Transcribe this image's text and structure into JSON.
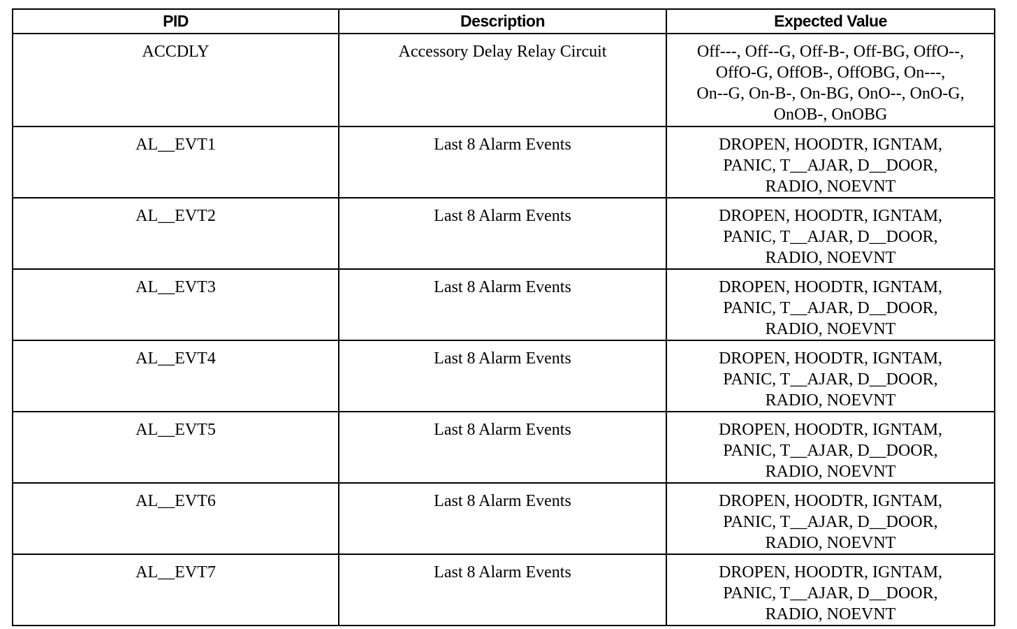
{
  "table": {
    "headers": [
      "PID",
      "Description",
      "Expected Value"
    ],
    "rows": [
      {
        "pid": "ACCDLY",
        "description": "Accessory Delay Relay Circuit",
        "expected": "Off---, Off--G, Off-B-, Off-BG, OffO--,\nOffO-G, OffOB-, OffOBG, On---,\nOn--G, On-B-, On-BG, OnO--, OnO-G,\nOnOB-, OnOBG"
      },
      {
        "pid": "AL__EVT1",
        "description": "Last 8 Alarm Events",
        "expected": "DROPEN, HOODTR, IGNTAM,\nPANIC, T__AJAR, D__DOOR,\nRADIO, NOEVNT"
      },
      {
        "pid": "AL__EVT2",
        "description": "Last 8 Alarm Events",
        "expected": "DROPEN, HOODTR, IGNTAM,\nPANIC, T__AJAR, D__DOOR,\nRADIO, NOEVNT"
      },
      {
        "pid": "AL__EVT3",
        "description": "Last 8 Alarm Events",
        "expected": "DROPEN, HOODTR, IGNTAM,\nPANIC, T__AJAR, D__DOOR,\nRADIO, NOEVNT"
      },
      {
        "pid": "AL__EVT4",
        "description": "Last 8 Alarm Events",
        "expected": "DROPEN, HOODTR, IGNTAM,\nPANIC, T__AJAR, D__DOOR,\nRADIO, NOEVNT"
      },
      {
        "pid": "AL__EVT5",
        "description": "Last 8 Alarm Events",
        "expected": "DROPEN, HOODTR, IGNTAM,\nPANIC, T__AJAR, D__DOOR,\nRADIO, NOEVNT"
      },
      {
        "pid": "AL__EVT6",
        "description": "Last 8 Alarm Events",
        "expected": "DROPEN, HOODTR, IGNTAM,\nPANIC, T__AJAR, D__DOOR,\nRADIO, NOEVNT"
      },
      {
        "pid": "AL__EVT7",
        "description": "Last 8 Alarm Events",
        "expected": "DROPEN, HOODTR, IGNTAM,\nPANIC, T__AJAR, D__DOOR,\nRADIO, NOEVNT"
      }
    ]
  }
}
